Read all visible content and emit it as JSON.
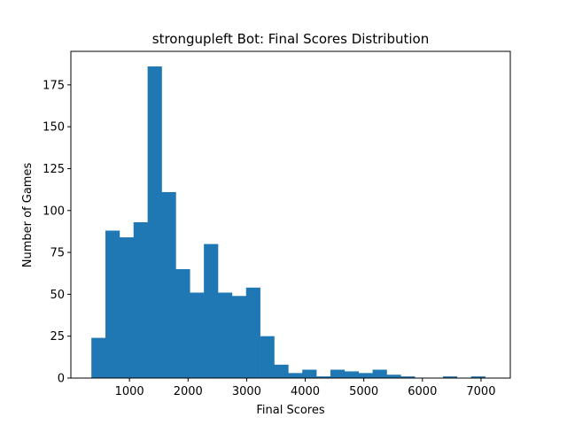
{
  "chart_data": {
    "type": "bar",
    "title": "strongupleft Bot: Final Scores Distribution",
    "xlabel": "Final Scores",
    "ylabel": "Number of Games",
    "xlim": [
      0,
      7500
    ],
    "ylim": [
      0,
      195
    ],
    "x_ticks": [
      1000,
      2000,
      3000,
      4000,
      5000,
      6000,
      7000
    ],
    "y_ticks": [
      0,
      25,
      50,
      75,
      100,
      125,
      150,
      175
    ],
    "grid": false,
    "color": "#1f77b4",
    "bin_edges": [
      350,
      590,
      830,
      1070,
      1310,
      1550,
      1790,
      2030,
      2270,
      2510,
      2750,
      2990,
      3230,
      3470,
      3710,
      3950,
      4190,
      4430,
      4670,
      4910,
      5150,
      5390,
      5630,
      5870,
      6110,
      6350,
      6590,
      6830,
      7070,
      7310
    ],
    "values": [
      24,
      88,
      84,
      93,
      186,
      111,
      65,
      51,
      80,
      51,
      49,
      54,
      25,
      8,
      3,
      5,
      1,
      5,
      4,
      3,
      5,
      2,
      1,
      0,
      0,
      1,
      0,
      1,
      0
    ]
  }
}
